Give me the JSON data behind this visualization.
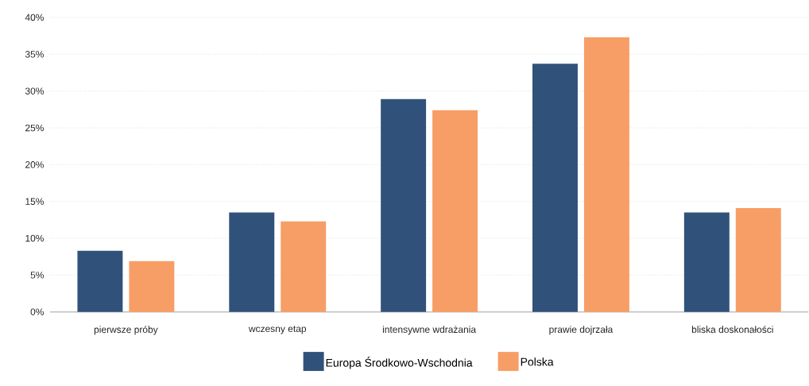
{
  "chart_data": {
    "type": "bar",
    "categories": [
      "pierwsze próby",
      "wczesny etap",
      "intensywne wdrażania",
      "prawie dojrzała",
      "bliska doskonałości"
    ],
    "series": [
      {
        "name": "Europa Środkowo-Wschodnia",
        "color": "#30527a",
        "values": [
          8.3,
          13.5,
          28.9,
          33.7,
          13.5
        ]
      },
      {
        "name": "Polska",
        "color": "#f79e66",
        "values": [
          6.9,
          12.3,
          27.4,
          37.3,
          14.1
        ]
      }
    ],
    "ylim": [
      0,
      40
    ],
    "yticks": [
      {
        "value": 0,
        "label": "0%"
      },
      {
        "value": 5,
        "label": "5%"
      },
      {
        "value": 10,
        "label": "10%"
      },
      {
        "value": 15,
        "label": "15%"
      },
      {
        "value": 20,
        "label": "20%"
      },
      {
        "value": 25,
        "label": "25%"
      },
      {
        "value": 30,
        "label": "30%"
      },
      {
        "value": 35,
        "label": "35%"
      },
      {
        "value": 40,
        "label": "40%"
      }
    ],
    "grid": "y",
    "legend": "bottom"
  }
}
